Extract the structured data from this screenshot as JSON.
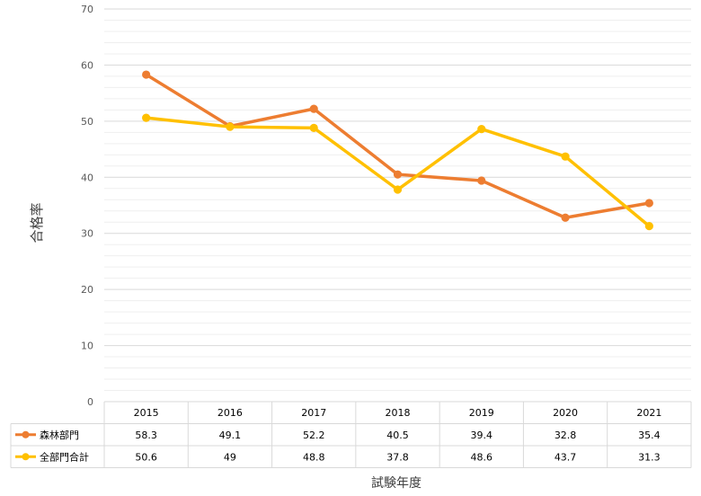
{
  "chart_data": {
    "type": "line",
    "xlabel": "試験年度",
    "ylabel": "合格率",
    "ylim": [
      0,
      70
    ],
    "yticks": [
      "0",
      "10",
      "20",
      "30",
      "40",
      "50",
      "60",
      "70"
    ],
    "categories": [
      "2015",
      "2016",
      "2017",
      "2018",
      "2019",
      "2020",
      "2021"
    ],
    "series": [
      {
        "name": "森林部門",
        "color": "#ed7d31",
        "values": [
          58.3,
          49.1,
          52.2,
          40.5,
          39.4,
          32.8,
          35.4
        ],
        "labels": [
          "58.3",
          "49.1",
          "52.2",
          "40.5",
          "39.4",
          "32.8",
          "35.4"
        ]
      },
      {
        "name": "全部門合計",
        "color": "#ffc000",
        "values": [
          50.6,
          49,
          48.8,
          37.8,
          48.6,
          43.7,
          31.3
        ],
        "labels": [
          "50.6",
          "49",
          "48.8",
          "37.8",
          "48.6",
          "43.7",
          "31.3"
        ]
      }
    ],
    "grid": true,
    "data_table": true,
    "legend": "data-table-left"
  }
}
